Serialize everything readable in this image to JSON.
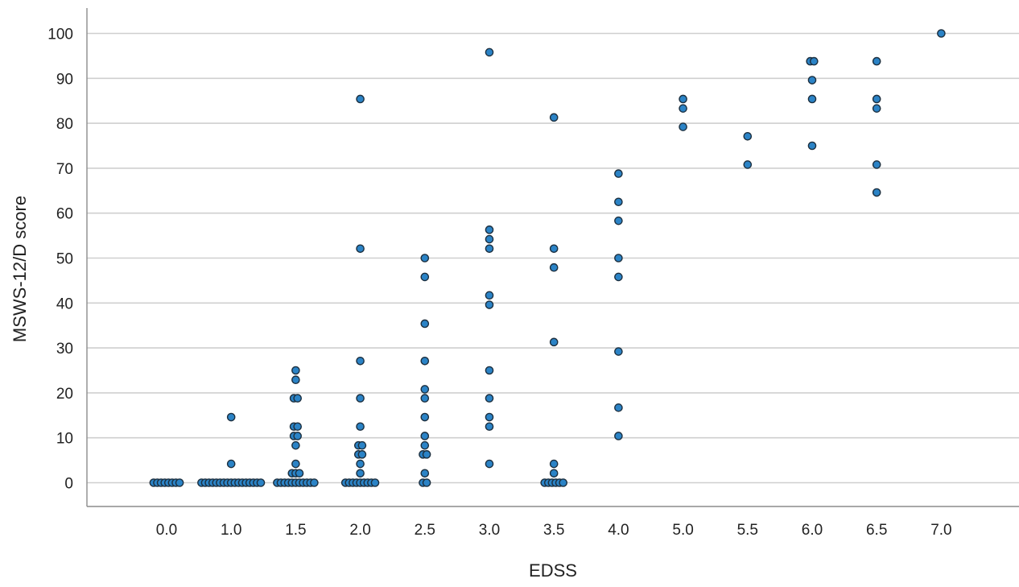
{
  "chart_data": {
    "type": "scatter",
    "title": "",
    "xlabel": "EDSS",
    "ylabel": "MSWS-12/D score",
    "x_categories": [
      "0.0",
      "1.0",
      "1.5",
      "2.0",
      "2.5",
      "3.0",
      "3.5",
      "4.0",
      "5.0",
      "5.5",
      "6.0",
      "6.5",
      "7.0"
    ],
    "y_ticks": [
      0,
      10,
      20,
      30,
      40,
      50,
      60,
      70,
      80,
      90,
      100
    ],
    "ylim": [
      -5.5,
      105.5
    ],
    "grid": "horizontal",
    "legend": "none",
    "marker_color": "#2b83c6",
    "marker_edge": "#1c2f3f",
    "series": [
      {
        "points": [
          {
            "x": "0.0",
            "y": 0
          },
          {
            "x": "0.0",
            "y": 0
          },
          {
            "x": "0.0",
            "y": 0
          },
          {
            "x": "0.0",
            "y": 0
          },
          {
            "x": "0.0",
            "y": 0
          },
          {
            "x": "0.0",
            "y": 0
          },
          {
            "x": "0.0",
            "y": 0
          },
          {
            "x": "0.0",
            "y": 0
          },
          {
            "x": "1.0",
            "y": 0
          },
          {
            "x": "1.0",
            "y": 0
          },
          {
            "x": "1.0",
            "y": 0
          },
          {
            "x": "1.0",
            "y": 0
          },
          {
            "x": "1.0",
            "y": 0
          },
          {
            "x": "1.0",
            "y": 0
          },
          {
            "x": "1.0",
            "y": 0
          },
          {
            "x": "1.0",
            "y": 0
          },
          {
            "x": "1.0",
            "y": 0
          },
          {
            "x": "1.0",
            "y": 0
          },
          {
            "x": "1.0",
            "y": 0
          },
          {
            "x": "1.0",
            "y": 0
          },
          {
            "x": "1.0",
            "y": 0
          },
          {
            "x": "1.0",
            "y": 0
          },
          {
            "x": "1.0",
            "y": 0
          },
          {
            "x": "1.0",
            "y": 0
          },
          {
            "x": "1.0",
            "y": 0
          },
          {
            "x": "1.0",
            "y": 4.2
          },
          {
            "x": "1.0",
            "y": 14.6
          },
          {
            "x": "1.5",
            "y": 0
          },
          {
            "x": "1.5",
            "y": 0
          },
          {
            "x": "1.5",
            "y": 0
          },
          {
            "x": "1.5",
            "y": 0
          },
          {
            "x": "1.5",
            "y": 0
          },
          {
            "x": "1.5",
            "y": 0
          },
          {
            "x": "1.5",
            "y": 0
          },
          {
            "x": "1.5",
            "y": 0
          },
          {
            "x": "1.5",
            "y": 0
          },
          {
            "x": "1.5",
            "y": 0
          },
          {
            "x": "1.5",
            "y": 0
          },
          {
            "x": "1.5",
            "y": 2.1
          },
          {
            "x": "1.5",
            "y": 2.1
          },
          {
            "x": "1.5",
            "y": 2.1
          },
          {
            "x": "1.5",
            "y": 4.2
          },
          {
            "x": "1.5",
            "y": 8.3
          },
          {
            "x": "1.5",
            "y": 10.4
          },
          {
            "x": "1.5",
            "y": 10.4
          },
          {
            "x": "1.5",
            "y": 12.5
          },
          {
            "x": "1.5",
            "y": 12.5
          },
          {
            "x": "1.5",
            "y": 18.8
          },
          {
            "x": "1.5",
            "y": 18.8
          },
          {
            "x": "1.5",
            "y": 22.9
          },
          {
            "x": "1.5",
            "y": 25
          },
          {
            "x": "2.0",
            "y": 0
          },
          {
            "x": "2.0",
            "y": 0
          },
          {
            "x": "2.0",
            "y": 0
          },
          {
            "x": "2.0",
            "y": 0
          },
          {
            "x": "2.0",
            "y": 0
          },
          {
            "x": "2.0",
            "y": 0
          },
          {
            "x": "2.0",
            "y": 0
          },
          {
            "x": "2.0",
            "y": 0
          },
          {
            "x": "2.0",
            "y": 0
          },
          {
            "x": "2.0",
            "y": 2.1
          },
          {
            "x": "2.0",
            "y": 4.2
          },
          {
            "x": "2.0",
            "y": 6.3
          },
          {
            "x": "2.0",
            "y": 6.3
          },
          {
            "x": "2.0",
            "y": 8.3
          },
          {
            "x": "2.0",
            "y": 8.3
          },
          {
            "x": "2.0",
            "y": 12.5
          },
          {
            "x": "2.0",
            "y": 18.8
          },
          {
            "x": "2.0",
            "y": 27.1
          },
          {
            "x": "2.0",
            "y": 52.1
          },
          {
            "x": "2.0",
            "y": 85.4
          },
          {
            "x": "2.5",
            "y": 0
          },
          {
            "x": "2.5",
            "y": 0
          },
          {
            "x": "2.5",
            "y": 2.1
          },
          {
            "x": "2.5",
            "y": 6.3
          },
          {
            "x": "2.5",
            "y": 6.3
          },
          {
            "x": "2.5",
            "y": 8.3
          },
          {
            "x": "2.5",
            "y": 10.4
          },
          {
            "x": "2.5",
            "y": 14.6
          },
          {
            "x": "2.5",
            "y": 18.8
          },
          {
            "x": "2.5",
            "y": 20.8
          },
          {
            "x": "2.5",
            "y": 27.1
          },
          {
            "x": "2.5",
            "y": 35.4
          },
          {
            "x": "2.5",
            "y": 45.8
          },
          {
            "x": "2.5",
            "y": 50
          },
          {
            "x": "3.0",
            "y": 4.2
          },
          {
            "x": "3.0",
            "y": 12.5
          },
          {
            "x": "3.0",
            "y": 14.6
          },
          {
            "x": "3.0",
            "y": 18.8
          },
          {
            "x": "3.0",
            "y": 25
          },
          {
            "x": "3.0",
            "y": 39.6
          },
          {
            "x": "3.0",
            "y": 41.7
          },
          {
            "x": "3.0",
            "y": 52.1
          },
          {
            "x": "3.0",
            "y": 54.2
          },
          {
            "x": "3.0",
            "y": 56.3
          },
          {
            "x": "3.0",
            "y": 95.8
          },
          {
            "x": "3.5",
            "y": 0
          },
          {
            "x": "3.5",
            "y": 0
          },
          {
            "x": "3.5",
            "y": 0
          },
          {
            "x": "3.5",
            "y": 0
          },
          {
            "x": "3.5",
            "y": 0
          },
          {
            "x": "3.5",
            "y": 0
          },
          {
            "x": "3.5",
            "y": 2.1
          },
          {
            "x": "3.5",
            "y": 4.2
          },
          {
            "x": "3.5",
            "y": 31.3
          },
          {
            "x": "3.5",
            "y": 47.9
          },
          {
            "x": "3.5",
            "y": 52.1
          },
          {
            "x": "3.5",
            "y": 81.3
          },
          {
            "x": "4.0",
            "y": 10.4
          },
          {
            "x": "4.0",
            "y": 16.7
          },
          {
            "x": "4.0",
            "y": 29.2
          },
          {
            "x": "4.0",
            "y": 45.8
          },
          {
            "x": "4.0",
            "y": 50
          },
          {
            "x": "4.0",
            "y": 58.3
          },
          {
            "x": "4.0",
            "y": 62.5
          },
          {
            "x": "4.0",
            "y": 68.8
          },
          {
            "x": "5.0",
            "y": 79.2
          },
          {
            "x": "5.0",
            "y": 83.3
          },
          {
            "x": "5.0",
            "y": 85.4
          },
          {
            "x": "5.5",
            "y": 70.8
          },
          {
            "x": "5.5",
            "y": 77.1
          },
          {
            "x": "6.0",
            "y": 75
          },
          {
            "x": "6.0",
            "y": 85.4
          },
          {
            "x": "6.0",
            "y": 89.6
          },
          {
            "x": "6.0",
            "y": 93.8
          },
          {
            "x": "6.0",
            "y": 93.8
          },
          {
            "x": "6.5",
            "y": 64.6
          },
          {
            "x": "6.5",
            "y": 70.8
          },
          {
            "x": "6.5",
            "y": 83.3
          },
          {
            "x": "6.5",
            "y": 85.4
          },
          {
            "x": "6.5",
            "y": 93.8
          },
          {
            "x": "7.0",
            "y": 100
          }
        ]
      }
    ]
  }
}
